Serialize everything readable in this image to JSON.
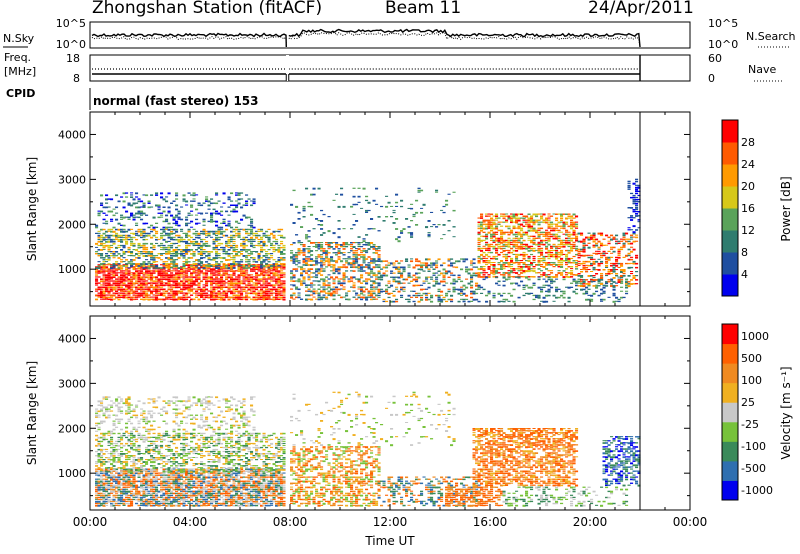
{
  "header": {
    "station": "Zhongshan Station (fitACF)",
    "beam": "Beam 11",
    "date": "24/Apr/2011"
  },
  "summary": {
    "nsky_label": "N.Sky",
    "nsky_ticks": [
      "10^5",
      "10^0"
    ],
    "nsearch_label": "N.Search",
    "nsearch_ticks": [
      "10^5",
      "10^0"
    ],
    "freq_label_1": "Freq.",
    "freq_label_2": "[MHz]",
    "freq_ticks": [
      "18",
      "8"
    ],
    "nave_label": "Nave",
    "nave_ticks": [
      "60",
      "0"
    ],
    "cpid_label": "CPID",
    "cpid_value": "normal (fast stereo) 153"
  },
  "colors": {
    "power_scale": [
      "#0000ee",
      "#1f4fa0",
      "#2f7c6f",
      "#5aa35a",
      "#d6c81a",
      "#ff9a00",
      "#ff5a00",
      "#ff0000"
    ],
    "velocity_scale": [
      "#0000ee",
      "#2f6fb0",
      "#3a8a5a",
      "#77c23a",
      "#c8c8c8",
      "#f0b020",
      "#f08a20",
      "#ff6000",
      "#ff0000"
    ]
  },
  "chart_data": [
    {
      "type": "heatmap",
      "name": "power",
      "ylabel": "Slant Range [km]",
      "yticks": [
        "4000",
        "3000",
        "2000",
        "1000"
      ],
      "ylim": [
        180,
        4500
      ],
      "xlim": [
        0,
        24
      ],
      "colorbar_label": "Power [dB]",
      "colorbar_ticks": [
        "28",
        "24",
        "20",
        "16",
        "12",
        "8",
        "4"
      ],
      "data_gap_hours": [
        7.85,
        7.95
      ],
      "data_end_hour": 22.0
    },
    {
      "type": "heatmap",
      "name": "velocity",
      "ylabel": "Slant Range [km]",
      "yticks": [
        "4000",
        "3000",
        "2000",
        "1000"
      ],
      "ylim": [
        180,
        4500
      ],
      "xlim": [
        0,
        24
      ],
      "colorbar_label": "Velocity [m s⁻¹]",
      "colorbar_ticks": [
        "1000",
        "500",
        "100",
        "25",
        "-25",
        "-100",
        "-500",
        "-1000"
      ],
      "data_gap_hours": [
        7.85,
        7.95
      ],
      "data_end_hour": 22.0
    }
  ],
  "xaxis": {
    "ticks": [
      "00:00",
      "04:00",
      "08:00",
      "12:00",
      "16:00",
      "20:00",
      "00:00"
    ],
    "label": "Time UT"
  }
}
